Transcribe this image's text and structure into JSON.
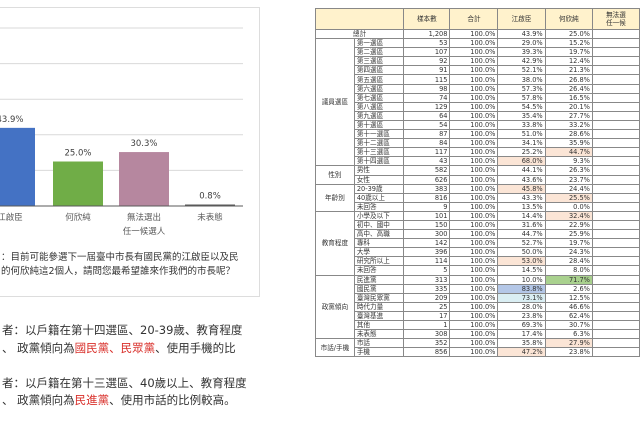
{
  "chart_data": {
    "type": "bar",
    "categories": [
      "江啟臣",
      "何欣純",
      "無法選出\n任一候選人",
      "未表態"
    ],
    "values": [
      43.9,
      25.0,
      30.3,
      0.8
    ],
    "data_labels": [
      "43.9%",
      "25.0%",
      "30.3%",
      "0.8%"
    ],
    "colors": [
      "#4472c4",
      "#70ad47",
      "#b6879f",
      "#595959"
    ],
    "ylim": [
      0,
      100
    ],
    "grid": true
  },
  "question": [
    "：目前可能參選下一屆臺中市長有國民黨的江啟臣以及民",
    "的何欣純這2個人，請問您最希望誰來作我們的市長呢？"
  ],
  "para1": {
    "line1": "者：以戶籍在第十四選區、20-39歲、教育程度",
    "line2_a": "、 政黨傾向為",
    "line2_red": "國民黨、民眾黨",
    "line2_b": "、使用手機的比"
  },
  "para2": {
    "line1": "者：以戶籍在第十三選區、40歲以上、教育程度",
    "line2_a": "、 政黨傾向為",
    "line2_red": "民進黨",
    "line2_b": "、使用市話的比例較高。"
  },
  "highlight_colors": {
    "peach": "#fbe5d6",
    "green": "#a9d18e",
    "blue": "#b4c7e7",
    "cyan": "#daeef3"
  },
  "table": {
    "headers": [
      "樣本數",
      "合計",
      "江啟臣",
      "何欣純",
      "無法選\n任一候"
    ],
    "total": {
      "label": "總計",
      "values": [
        "1,208",
        "100.0%",
        "43.9%",
        "25.0%"
      ]
    },
    "groups": [
      {
        "name": "議員選區",
        "rows": [
          [
            "第一選區",
            "53",
            "100.0%",
            "29.0%",
            "15.2%"
          ],
          [
            "第二選區",
            "107",
            "100.0%",
            "39.3%",
            "19.7%"
          ],
          [
            "第三選區",
            "92",
            "100.0%",
            "42.9%",
            "12.4%"
          ],
          [
            "第四選區",
            "91",
            "100.0%",
            "52.1%",
            "21.3%"
          ],
          [
            "第五選區",
            "115",
            "100.0%",
            "38.0%",
            "26.8%"
          ],
          [
            "第六選區",
            "98",
            "100.0%",
            "57.3%",
            "26.4%"
          ],
          [
            "第七選區",
            "74",
            "100.0%",
            "57.8%",
            "16.5%"
          ],
          [
            "第八選區",
            "129",
            "100.0%",
            "54.5%",
            "20.1%"
          ],
          [
            "第九選區",
            "64",
            "100.0%",
            "35.4%",
            "27.7%"
          ],
          [
            "第十選區",
            "54",
            "100.0%",
            "33.8%",
            "33.2%"
          ],
          [
            "第十一選區",
            "87",
            "100.0%",
            "51.0%",
            "28.6%"
          ],
          [
            "第十二選區",
            "84",
            "100.0%",
            "34.1%",
            "35.9%"
          ],
          [
            "第十三選區",
            "117",
            "100.0%",
            "25.2%",
            "44.7%",
            "",
            "peach"
          ],
          [
            "第十四選區",
            "43",
            "100.0%",
            "68.0%",
            "9.3%",
            "peach",
            ""
          ]
        ]
      },
      {
        "name": "性別",
        "rows": [
          [
            "男性",
            "582",
            "100.0%",
            "44.1%",
            "26.3%"
          ],
          [
            "女性",
            "626",
            "100.0%",
            "43.6%",
            "23.7%"
          ]
        ]
      },
      {
        "name": "年齡別",
        "rows": [
          [
            "20-39歲",
            "383",
            "100.0%",
            "45.8%",
            "24.4%",
            "peach",
            ""
          ],
          [
            "40歲以上",
            "816",
            "100.0%",
            "43.3%",
            "25.5%",
            "",
            "peach"
          ],
          [
            "未回答",
            "9",
            "100.0%",
            "13.5%",
            "0.0%"
          ]
        ]
      },
      {
        "name": "教育程度",
        "rows": [
          [
            "小學及以下",
            "101",
            "100.0%",
            "14.4%",
            "32.4%",
            "",
            "peach"
          ],
          [
            "初中、國中",
            "150",
            "100.0%",
            "31.6%",
            "22.9%"
          ],
          [
            "高中、高職",
            "300",
            "100.0%",
            "44.7%",
            "25.9%"
          ],
          [
            "專科",
            "142",
            "100.0%",
            "52.7%",
            "19.7%"
          ],
          [
            "大學",
            "396",
            "100.0%",
            "50.0%",
            "24.3%"
          ],
          [
            "研究所以上",
            "114",
            "100.0%",
            "53.0%",
            "28.4%",
            "peach",
            ""
          ],
          [
            "未回答",
            "5",
            "100.0%",
            "14.5%",
            "8.0%"
          ]
        ]
      },
      {
        "name": "政黨傾向",
        "rows": [
          [
            "民進黨",
            "313",
            "100.0%",
            "10.0%",
            "71.7%",
            "",
            "green"
          ],
          [
            "國民黨",
            "335",
            "100.0%",
            "83.8%",
            "2.6%",
            "blue",
            ""
          ],
          [
            "臺灣民眾黨",
            "209",
            "100.0%",
            "73.1%",
            "12.5%",
            "cyan",
            ""
          ],
          [
            "時代力量",
            "25",
            "100.0%",
            "28.0%",
            "46.6%"
          ],
          [
            "臺灣基進",
            "17",
            "100.0%",
            "23.8%",
            "62.4%"
          ],
          [
            "其他",
            "1",
            "100.0%",
            "69.3%",
            "30.7%"
          ],
          [
            "未表態",
            "308",
            "100.0%",
            "17.4%",
            "6.3%"
          ]
        ]
      },
      {
        "name": "市話/手機",
        "rows": [
          [
            "市話",
            "352",
            "100.0%",
            "35.8%",
            "27.9%",
            "",
            "peach"
          ],
          [
            "手機",
            "856",
            "100.0%",
            "47.2%",
            "23.8%",
            "peach",
            ""
          ]
        ]
      }
    ]
  }
}
